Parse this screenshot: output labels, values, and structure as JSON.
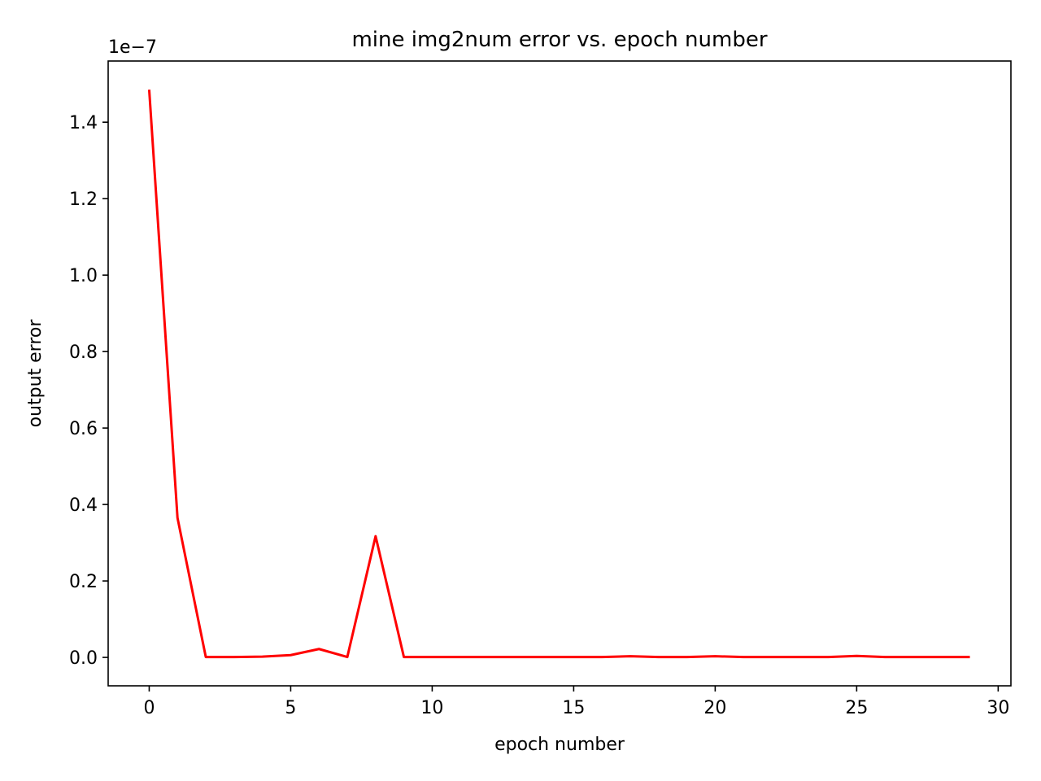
{
  "chart_data": {
    "type": "line",
    "title": "mine img2num error vs. epoch number",
    "xlabel": "epoch number",
    "ylabel": "output error",
    "y_offset_label": "1e−7",
    "y_scale_factor": 1e-07,
    "xlim": [
      -1.45,
      30.45
    ],
    "ylim": [
      -0.0743,
      1.56
    ],
    "x_ticks": [
      0,
      5,
      10,
      15,
      20,
      25,
      30
    ],
    "x_tick_labels": [
      "0",
      "5",
      "10",
      "15",
      "20",
      "25",
      "30"
    ],
    "y_ticks": [
      0.0,
      0.2,
      0.4,
      0.6,
      0.8,
      1.0,
      1.2,
      1.4
    ],
    "y_tick_labels": [
      "0.0",
      "0.2",
      "0.4",
      "0.6",
      "0.8",
      "1.0",
      "1.2",
      "1.4"
    ],
    "grid": false,
    "legend": "none",
    "series": [
      {
        "color": "#ff0000",
        "x": [
          0,
          1,
          2,
          3,
          4,
          5,
          6,
          7,
          8,
          9,
          10,
          11,
          12,
          13,
          14,
          15,
          16,
          17,
          18,
          19,
          20,
          21,
          22,
          23,
          24,
          25,
          26,
          27,
          28,
          29
        ],
        "y": [
          1.485,
          0.365,
          0.001,
          0.001,
          0.002,
          0.006,
          0.022,
          0.001,
          0.317,
          0.001,
          0.001,
          0.001,
          0.001,
          0.001,
          0.001,
          0.001,
          0.001,
          0.003,
          0.001,
          0.001,
          0.003,
          0.001,
          0.001,
          0.001,
          0.001,
          0.004,
          0.001,
          0.001,
          0.001,
          0.001
        ]
      }
    ]
  }
}
